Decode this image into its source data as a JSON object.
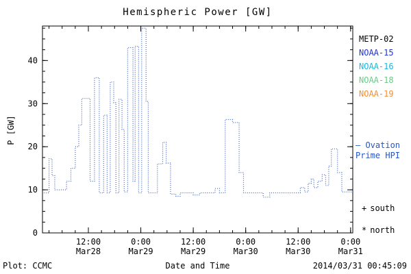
{
  "window": {
    "background": "#ffffff"
  },
  "chart_data": {
    "type": "line",
    "title": "Hemispheric Power [GW]",
    "xlabel": "Date and Time",
    "ylabel": "P [GW]",
    "xlim": [
      1.5,
      72.5
    ],
    "ylim": [
      0,
      48
    ],
    "yticks": [
      0,
      10,
      20,
      30,
      40
    ],
    "y_minor_step": 2.5,
    "x_minor_step": 3,
    "grid": false,
    "x_ticks": [
      {
        "t": 12,
        "time": "12:00",
        "date": "Mar28"
      },
      {
        "t": 24,
        "time": "0:00",
        "date": "Mar29"
      },
      {
        "t": 36,
        "time": "12:00",
        "date": "Mar29"
      },
      {
        "t": 48,
        "time": "0:00",
        "date": "Mar30"
      },
      {
        "t": 60,
        "time": "12:00",
        "date": "Mar30"
      },
      {
        "t": 72,
        "time": "0:00",
        "date": "Mar31"
      }
    ],
    "series": [
      {
        "name": "Ovation Prime HPI",
        "color": "#3b62c9",
        "line_style": "dotted-step",
        "points": [
          [
            1.8,
            9.3
          ],
          [
            3.0,
            17.2
          ],
          [
            3.7,
            13.3
          ],
          [
            4.3,
            10.0
          ],
          [
            7.0,
            12.0
          ],
          [
            8.0,
            15.0
          ],
          [
            9.0,
            20.0
          ],
          [
            9.8,
            25.0
          ],
          [
            10.5,
            31.2
          ],
          [
            12.4,
            12.0
          ],
          [
            13.4,
            36.0
          ],
          [
            14.5,
            9.3
          ],
          [
            15.5,
            27.3
          ],
          [
            16.3,
            9.3
          ],
          [
            17.0,
            35.0
          ],
          [
            17.8,
            30.2
          ],
          [
            18.3,
            9.3
          ],
          [
            19.0,
            31.0
          ],
          [
            19.7,
            24.0
          ],
          [
            20.2,
            9.5
          ],
          [
            21.0,
            43.0
          ],
          [
            22.2,
            12.0
          ],
          [
            22.7,
            43.3
          ],
          [
            23.5,
            9.3
          ],
          [
            24.2,
            47.5
          ],
          [
            25.2,
            30.5
          ],
          [
            25.7,
            9.3
          ],
          [
            27.8,
            16.0
          ],
          [
            29.0,
            21.0
          ],
          [
            29.8,
            16.2
          ],
          [
            30.8,
            9.0
          ],
          [
            32.0,
            8.5
          ],
          [
            33.0,
            9.3
          ],
          [
            36.0,
            8.8
          ],
          [
            37.5,
            9.3
          ],
          [
            41.0,
            10.3
          ],
          [
            42.0,
            9.3
          ],
          [
            43.3,
            26.3
          ],
          [
            45.0,
            25.6
          ],
          [
            46.5,
            14.0
          ],
          [
            47.5,
            9.3
          ],
          [
            52.0,
            8.3
          ],
          [
            53.5,
            9.3
          ],
          [
            60.5,
            10.5
          ],
          [
            61.5,
            9.5
          ],
          [
            62.3,
            11.5
          ],
          [
            63.0,
            12.5
          ],
          [
            63.6,
            10.5
          ],
          [
            64.5,
            12.0
          ],
          [
            65.5,
            13.5
          ],
          [
            66.3,
            11.0
          ],
          [
            67.0,
            15.5
          ],
          [
            67.6,
            19.5
          ],
          [
            69.0,
            14.0
          ],
          [
            70.0,
            9.5
          ],
          [
            72.4,
            9.5
          ]
        ]
      }
    ]
  },
  "legend": {
    "satellites": [
      {
        "label": "METP-02",
        "color": "#000000"
      },
      {
        "label": "NOAA-15",
        "color": "#2233cc"
      },
      {
        "label": "NOAA-16",
        "color": "#1ab8d8"
      },
      {
        "label": "NOAA-18",
        "color": "#6cc98a"
      },
      {
        "label": "NOAA-19",
        "color": "#ef9036"
      }
    ]
  },
  "annotations": {
    "ovation": {
      "line1": "— Ovation",
      "line2": "Prime HPI",
      "color": "#2255cc"
    },
    "markers": [
      {
        "symbol": "+",
        "label": "south"
      },
      {
        "symbol": "*",
        "label": "north"
      }
    ]
  },
  "footer": {
    "credit": "Plot: CCMC",
    "timestamp": "2014/03/31 00:45:09"
  }
}
